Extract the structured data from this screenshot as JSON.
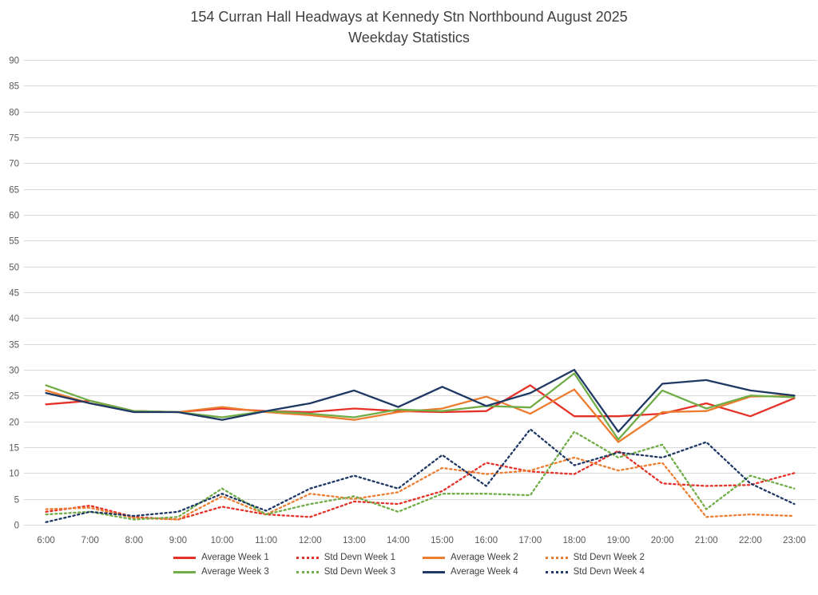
{
  "chart_data": {
    "type": "line",
    "title": "154 Curran Hall Headways at Kennedy Stn Northbound August 2025",
    "subtitle": "Weekday Statistics",
    "x": [
      "6:00",
      "7:00",
      "8:00",
      "9:00",
      "10:00",
      "11:00",
      "12:00",
      "13:00",
      "14:00",
      "15:00",
      "16:00",
      "17:00",
      "18:00",
      "19:00",
      "20:00",
      "21:00",
      "22:00",
      "23:00"
    ],
    "ylim": [
      0,
      90
    ],
    "ytick_step": 5,
    "grid": true,
    "legend_position": "bottom",
    "series": [
      {
        "name": "Average Week 1",
        "color": "#E53228",
        "style": "solid",
        "values": [
          23.3,
          24,
          22,
          21.8,
          22.5,
          22,
          21.8,
          22.5,
          22,
          21.8,
          22,
          27,
          21,
          21,
          21.5,
          23.5,
          21,
          24.5
        ]
      },
      {
        "name": "Std Devn Week 1",
        "color": "#E53228",
        "style": "dotted",
        "values": [
          2.5,
          3.7,
          1.5,
          1,
          3.5,
          2,
          1.5,
          4.5,
          4,
          6.5,
          12,
          10.3,
          9.8,
          14.3,
          8,
          7.5,
          7.7,
          10
        ]
      },
      {
        "name": "Average Week 2",
        "color": "#ED7D31",
        "style": "solid",
        "values": [
          26,
          23.5,
          22,
          21.8,
          22.8,
          21.8,
          21.2,
          20.3,
          21.8,
          22.5,
          24.8,
          21.5,
          26.2,
          16,
          21.8,
          22,
          24.8,
          25
        ]
      },
      {
        "name": "Std Devn Week 2",
        "color": "#ED7D31",
        "style": "dotted",
        "values": [
          3,
          3.3,
          1.3,
          1,
          5.5,
          2,
          6,
          5,
          6.3,
          11,
          9.8,
          10.5,
          13,
          10.5,
          12,
          1.5,
          2,
          1.7
        ]
      },
      {
        "name": "Average Week 3",
        "color": "#70AD47",
        "style": "solid",
        "values": [
          27,
          24,
          22,
          21.8,
          20.8,
          22,
          21.5,
          20.8,
          22.3,
          22,
          23,
          22.7,
          29.3,
          16.5,
          26,
          22.5,
          25,
          24.7
        ]
      },
      {
        "name": "Std Devn Week 3",
        "color": "#70AD47",
        "style": "dotted",
        "values": [
          2,
          2.5,
          1,
          1.5,
          7,
          2,
          4,
          5.5,
          2.5,
          6,
          6,
          5.7,
          18,
          13,
          15.5,
          3,
          9.5,
          7
        ]
      },
      {
        "name": "Average Week 4",
        "color": "#1F3864",
        "style": "solid",
        "values": [
          25.5,
          23.5,
          21.8,
          21.8,
          20.3,
          22,
          23.5,
          26,
          22.8,
          26.7,
          23,
          25.5,
          30,
          18,
          27.3,
          28,
          26,
          25
        ]
      },
      {
        "name": "Std Devn Week 4",
        "color": "#1F3864",
        "style": "dotted",
        "values": [
          0.5,
          2.5,
          1.7,
          2.5,
          6,
          2.7,
          7,
          9.5,
          7,
          13.5,
          7.5,
          18.5,
          11.5,
          14,
          13,
          16,
          8,
          4
        ]
      }
    ],
    "legend_rows": [
      [
        0,
        1,
        2,
        3
      ],
      [
        4,
        5,
        6,
        7
      ]
    ]
  },
  "styles": {
    "grid_color": "#D9D9D9",
    "tick_color": "#595959",
    "title_color": "#404040",
    "legend_text_color": "#404040"
  }
}
